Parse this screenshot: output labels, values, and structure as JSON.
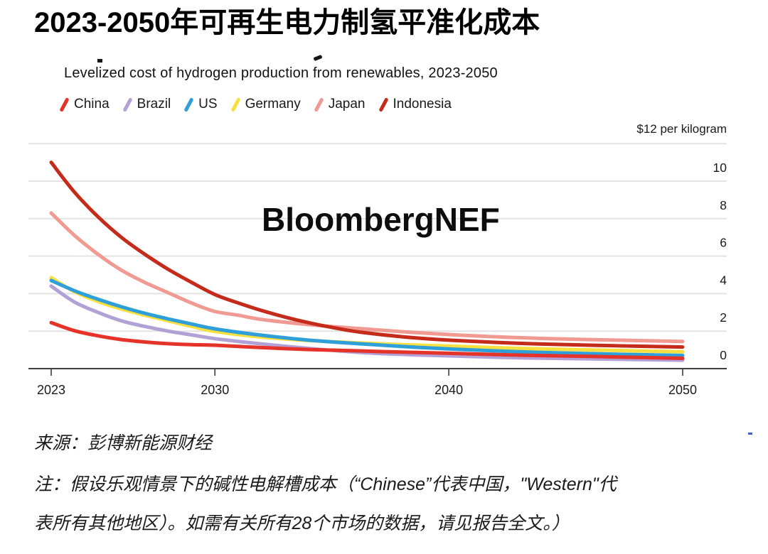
{
  "page": {
    "title": "2023-2050年可再生电力制氢平准化成本",
    "subtitle": "Levelized cost of hydrogen production from renewables, 2023-2050",
    "watermark": "BloombergNEF",
    "unit_label": "$12 per kilogram",
    "source": "来源：彭博新能源财经",
    "note_line1": "注：假设乐观情景下的碱性电解槽成本（“Chinese”代表中国，\"Western\"代",
    "note_line2": "表所有其他地区）。如需有关所有28个市场的数据，请见报告全文。）"
  },
  "colors": {
    "china": "#e63329",
    "brazil": "#b2a1d6",
    "us": "#2f9fd9",
    "germany": "#f7e03f",
    "japan": "#f09a92",
    "indonesia": "#c52b1b",
    "gridline": "#e3e3e3",
    "axis": "#3d3d3d",
    "text": "#1a1a1a"
  },
  "chart_data": {
    "type": "line",
    "title": "2023-2050年可再生电力制氢平准化成本",
    "subtitle": "Levelized cost of hydrogen production from renewables, 2023-2050",
    "xlabel": "",
    "ylabel": "$12 per kilogram",
    "unit": "$ per kilogram",
    "xlim": [
      2023,
      2050
    ],
    "ylim": [
      0,
      12
    ],
    "x_ticks": [
      2023,
      2030,
      2040,
      2050
    ],
    "y_ticks": [
      0,
      2,
      4,
      6,
      8,
      10
    ],
    "grid": "horizontal",
    "legend_position": "top",
    "series": [
      {
        "name": "Brazil",
        "color_key": "brazil",
        "points": [
          [
            2023,
            4.4
          ],
          [
            2024,
            3.55
          ],
          [
            2025,
            3.0
          ],
          [
            2026,
            2.55
          ],
          [
            2027,
            2.25
          ],
          [
            2028,
            2.0
          ],
          [
            2029,
            1.8
          ],
          [
            2030,
            1.6
          ],
          [
            2032,
            1.32
          ],
          [
            2034,
            1.08
          ],
          [
            2036,
            0.88
          ],
          [
            2038,
            0.76
          ],
          [
            2040,
            0.68
          ],
          [
            2043,
            0.58
          ],
          [
            2046,
            0.52
          ],
          [
            2050,
            0.45
          ]
        ]
      },
      {
        "name": "Germany",
        "color_key": "germany",
        "points": [
          [
            2023,
            4.85
          ],
          [
            2024,
            4.1
          ],
          [
            2025,
            3.58
          ],
          [
            2026,
            3.18
          ],
          [
            2027,
            2.85
          ],
          [
            2028,
            2.55
          ],
          [
            2029,
            2.25
          ],
          [
            2030,
            1.98
          ],
          [
            2032,
            1.68
          ],
          [
            2034,
            1.5
          ],
          [
            2036,
            1.38
          ],
          [
            2038,
            1.28
          ],
          [
            2040,
            1.2
          ],
          [
            2043,
            1.08
          ],
          [
            2046,
            1.0
          ],
          [
            2050,
            0.9
          ]
        ]
      },
      {
        "name": "US",
        "color_key": "us",
        "points": [
          [
            2023,
            4.7
          ],
          [
            2024,
            4.15
          ],
          [
            2025,
            3.7
          ],
          [
            2026,
            3.3
          ],
          [
            2027,
            2.95
          ],
          [
            2028,
            2.65
          ],
          [
            2029,
            2.38
          ],
          [
            2030,
            2.12
          ],
          [
            2032,
            1.78
          ],
          [
            2034,
            1.52
          ],
          [
            2036,
            1.34
          ],
          [
            2038,
            1.18
          ],
          [
            2040,
            1.05
          ],
          [
            2043,
            0.9
          ],
          [
            2046,
            0.8
          ],
          [
            2050,
            0.7
          ]
        ]
      },
      {
        "name": "Japan",
        "color_key": "japan",
        "points": [
          [
            2023,
            8.3
          ],
          [
            2024,
            7.1
          ],
          [
            2025,
            6.1
          ],
          [
            2026,
            5.25
          ],
          [
            2027,
            4.6
          ],
          [
            2028,
            4.05
          ],
          [
            2029,
            3.5
          ],
          [
            2030,
            3.05
          ],
          [
            2031,
            2.85
          ],
          [
            2032,
            2.62
          ],
          [
            2034,
            2.35
          ],
          [
            2036,
            2.15
          ],
          [
            2038,
            1.97
          ],
          [
            2040,
            1.82
          ],
          [
            2043,
            1.65
          ],
          [
            2046,
            1.55
          ],
          [
            2050,
            1.45
          ]
        ]
      },
      {
        "name": "Indonesia",
        "color_key": "indonesia",
        "points": [
          [
            2023,
            11.0
          ],
          [
            2024,
            9.4
          ],
          [
            2025,
            8.1
          ],
          [
            2026,
            7.0
          ],
          [
            2027,
            6.1
          ],
          [
            2028,
            5.3
          ],
          [
            2029,
            4.6
          ],
          [
            2030,
            3.95
          ],
          [
            2031,
            3.5
          ],
          [
            2032,
            3.1
          ],
          [
            2033,
            2.75
          ],
          [
            2034,
            2.45
          ],
          [
            2035,
            2.2
          ],
          [
            2036,
            1.98
          ],
          [
            2038,
            1.7
          ],
          [
            2040,
            1.52
          ],
          [
            2043,
            1.35
          ],
          [
            2046,
            1.25
          ],
          [
            2050,
            1.15
          ]
        ]
      },
      {
        "name": "China",
        "color_key": "china",
        "points": [
          [
            2023,
            2.45
          ],
          [
            2024,
            2.02
          ],
          [
            2025,
            1.75
          ],
          [
            2026,
            1.55
          ],
          [
            2027,
            1.42
          ],
          [
            2028,
            1.33
          ],
          [
            2029,
            1.28
          ],
          [
            2030,
            1.25
          ],
          [
            2032,
            1.12
          ],
          [
            2034,
            1.02
          ],
          [
            2036,
            0.95
          ],
          [
            2038,
            0.88
          ],
          [
            2040,
            0.82
          ],
          [
            2043,
            0.72
          ],
          [
            2046,
            0.65
          ],
          [
            2050,
            0.55
          ]
        ]
      }
    ],
    "legend_order": [
      "China",
      "Brazil",
      "US",
      "Germany",
      "Japan",
      "Indonesia"
    ]
  }
}
